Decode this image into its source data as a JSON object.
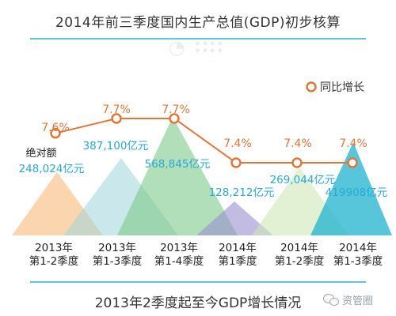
{
  "title_top": "2014年前三季度国内生产总值(GDP)初步核算",
  "title_bottom": "2013年2季度起至今GDP增长情况",
  "legend_label": "同比增长",
  "watermark_logo_text": "资管圈",
  "gdp_label": "绝对额",
  "colors": {
    "line": "#e0763a",
    "marker": "#e0763a",
    "growth_text": "#e0763a",
    "value_text": "#29a8d6",
    "rule": "#5ec6e0",
    "axis_text": "#222222"
  },
  "chart_data": {
    "type": "line",
    "categories": [
      "2013年\n第1-2季度",
      "2013年\n第1-3季度",
      "2013年\n第1-4季度",
      "2014年\n第1季度",
      "2014年\n第1-2季度",
      "2014年\n第1-3季度"
    ],
    "series": [
      {
        "name": "同比增长",
        "values": [
          7.6,
          7.7,
          7.7,
          7.4,
          7.4,
          7.4
        ],
        "labels": [
          "7.6%",
          "7.7%",
          "7.7%",
          "7.4%",
          "7.4%",
          "7.4%"
        ]
      }
    ],
    "gdp_values": [
      "248,024亿元",
      "387,100亿元",
      "568,845亿元",
      "128,212亿元",
      "269,044亿元",
      "419908亿元"
    ],
    "ylim": [
      7.0,
      8.0
    ],
    "legend_position": "top-right",
    "grid": false
  }
}
